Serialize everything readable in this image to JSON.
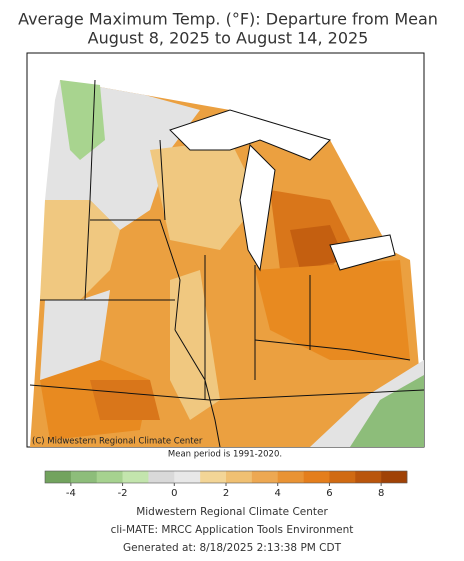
{
  "title": "Average Maximum Temp. (°F): Departure from Mean",
  "subtitle": "August 8, 2025 to August 14, 2025",
  "copyright": "(C) Midwestern Regional Climate Center",
  "mean_period": "Mean period is 1991-2020.",
  "colorbar": {
    "lim": [
      -5,
      9
    ],
    "ticks": [
      -4,
      -2,
      0,
      2,
      4,
      6,
      8
    ],
    "colors": [
      "#72a35e",
      "#8dbd7a",
      "#a6d28f",
      "#c3e5ad",
      "#d9d9d9",
      "#e8e8e8",
      "#f3d596",
      "#f0c072",
      "#eda852",
      "#e99334",
      "#e47e1c",
      "#d06a12",
      "#b9550c",
      "#a04206"
    ]
  },
  "footer": [
    "Midwestern Regional Climate Center",
    "cli-MATE: MRCC Application Tools Environment",
    "Generated at: 8/18/2025 2:13:38 PM CDT"
  ]
}
